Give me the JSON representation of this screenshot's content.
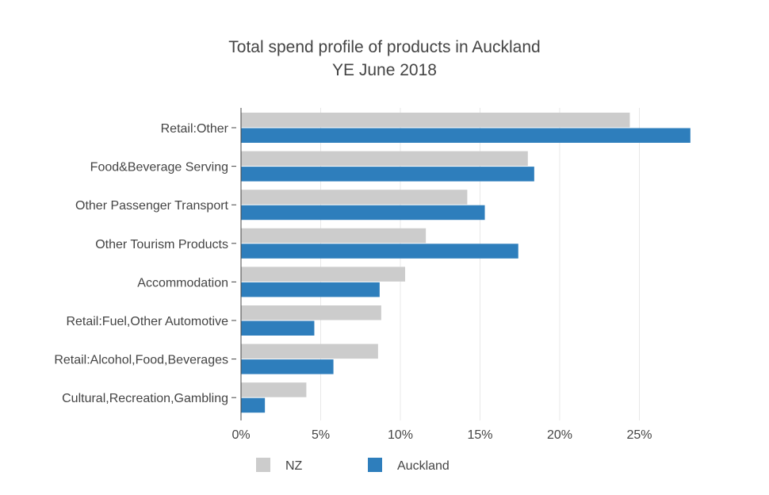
{
  "chart_data": {
    "type": "bar",
    "orientation": "horizontal",
    "title": "Total spend profile of products in Auckland",
    "subtitle": "YE June 2018",
    "categories": [
      "Retail:Other",
      "Food&Beverage Serving",
      "Other Passenger Transport",
      "Other Tourism Products",
      "Accommodation",
      "Retail:Fuel,Other Automotive",
      "Retail:Alcohol,Food,Beverages",
      "Cultural,Recreation,Gambling"
    ],
    "series": [
      {
        "name": "NZ",
        "color": "#cccccc",
        "values": [
          24.4,
          18.0,
          14.2,
          11.6,
          10.3,
          8.8,
          8.6,
          4.1
        ]
      },
      {
        "name": "Auckland",
        "color": "#2e7ebc",
        "values": [
          28.2,
          18.4,
          15.3,
          17.4,
          8.7,
          4.6,
          5.8,
          1.5
        ]
      }
    ],
    "xlim": [
      0,
      30
    ],
    "x_ticks": [
      "0%",
      "5%",
      "10%",
      "15%",
      "20%",
      "25%"
    ],
    "x_tick_values": [
      0,
      5,
      10,
      15,
      20,
      25
    ],
    "xlabel": "",
    "ylabel": "",
    "grid": "vertical",
    "legend_position": "bottom"
  }
}
